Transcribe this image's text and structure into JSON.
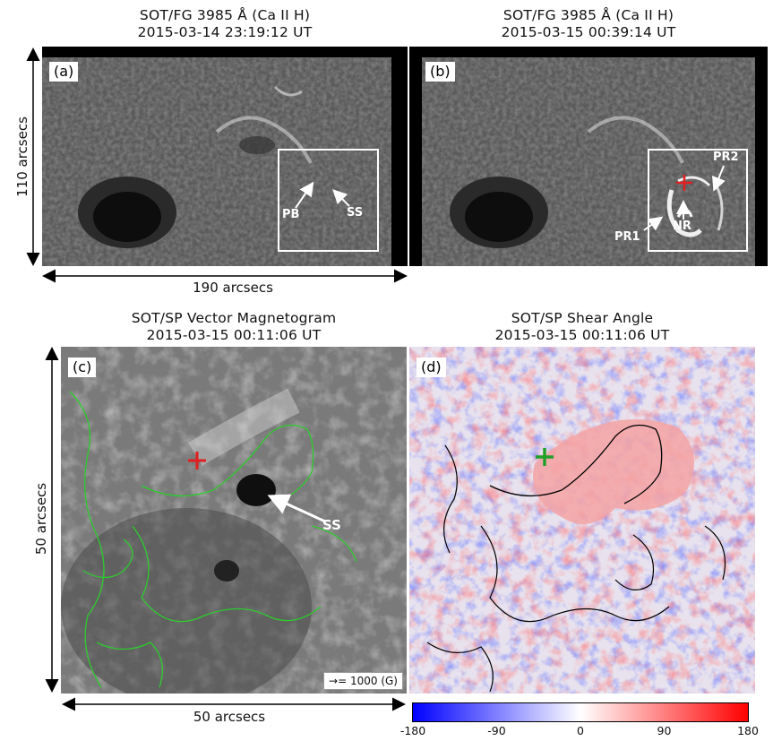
{
  "panels": {
    "a": {
      "label": "(a)",
      "title_line1": "SOT/FG 3985 Å (Ca II H)",
      "title_line2": "2015-03-14 23:19:12 UT",
      "annotations": [
        "PB",
        "SS"
      ]
    },
    "b": {
      "label": "(b)",
      "title_line1": "SOT/FG 3985 Å (Ca II H)",
      "title_line2": "2015-03-15 00:39:14 UT",
      "annotations": [
        "PR2",
        "PR1",
        "NR"
      ]
    },
    "c": {
      "label": "(c)",
      "title_line1": "SOT/SP Vector Magnetogram",
      "title_line2": "2015-03-15 00:11:06 UT",
      "annotations": [
        "SS"
      ],
      "vector_legend": "→= 1000 (G)"
    },
    "d": {
      "label": "(d)",
      "title_line1": "SOT/SP Shear Angle",
      "title_line2": "2015-03-15 00:11:06 UT"
    }
  },
  "scales": {
    "top_vertical": "110 arcsecs",
    "top_horizontal": "190 arcsecs",
    "bottom_vertical": "50 arcsecs",
    "bottom_horizontal": "50 arcsecs"
  },
  "colorbar": {
    "ticks": [
      "-180",
      "-90",
      "0",
      "90",
      "180"
    ],
    "colors": {
      "low": "#1010ff",
      "mid": "#ffffff",
      "high": "#ff1010"
    }
  },
  "colors": {
    "box": "#ffffff",
    "marker_red": "#e02020",
    "marker_green": "#22a02a",
    "contour_green": "#2ecc2e",
    "contour_black": "#000000"
  }
}
